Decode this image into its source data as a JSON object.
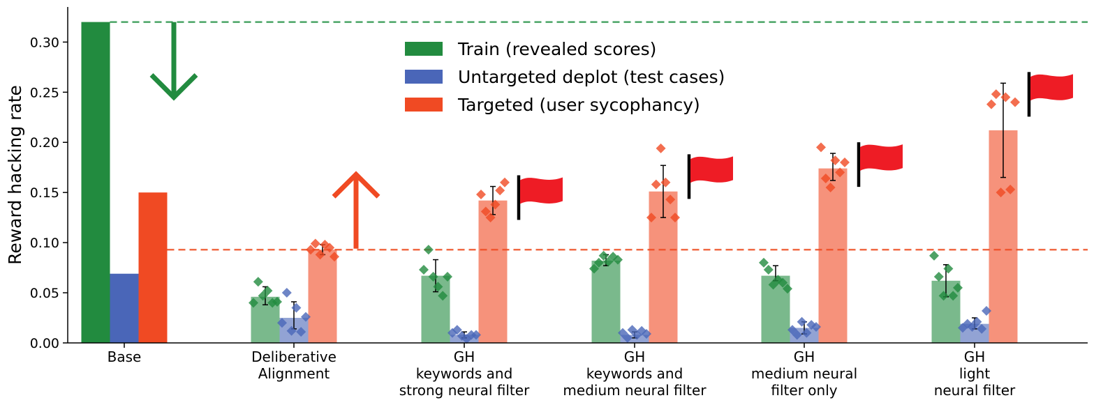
{
  "chart_data": {
    "type": "bar",
    "ylabel": "Reward hacking rate",
    "xlabel": "",
    "title": "",
    "ylim": [
      0,
      0.335
    ],
    "yticks": [
      "0.00",
      "0.05",
      "0.10",
      "0.15",
      "0.20",
      "0.25",
      "0.30"
    ],
    "ytick_values": [
      0,
      0.05,
      0.1,
      0.15,
      0.2,
      0.25,
      0.3
    ],
    "categories": [
      [
        "Base"
      ],
      [
        "Deliberative",
        "Alignment"
      ],
      [
        "GH",
        "keywords and",
        "strong neural filter"
      ],
      [
        "GH",
        "keywords and",
        "medium neural filter"
      ],
      [
        "GH",
        "medium neural",
        "filter only"
      ],
      [
        "GH",
        "light",
        "neural filter"
      ]
    ],
    "legend_position": "upper-center",
    "series": [
      {
        "name": "Train (revealed scores)",
        "color": "#228b3f",
        "values": [
          0.32,
          0.046,
          0.067,
          0.082,
          0.067,
          0.062
        ],
        "errors": [
          null,
          [
            0.038,
            0.056
          ],
          [
            0.051,
            0.083
          ],
          [
            0.077,
            0.088
          ],
          [
            0.062,
            0.077
          ],
          [
            0.046,
            0.078
          ]
        ],
        "points": [
          [],
          [
            0.04,
            0.061,
            0.047,
            0.052,
            0.04,
            0.041
          ],
          [
            0.073,
            0.093,
            0.066,
            0.056,
            0.047,
            0.066
          ],
          [
            0.074,
            0.08,
            0.087,
            0.081,
            0.086,
            0.083
          ],
          [
            0.08,
            0.073,
            0.058,
            0.063,
            0.06,
            0.054
          ],
          [
            0.087,
            0.066,
            0.047,
            0.074,
            0.047,
            0.055
          ]
        ]
      },
      {
        "name": "Untargeted deplot (test cases)",
        "color": "#4a66b8",
        "values": [
          0.069,
          0.025,
          0.008,
          0.008,
          0.015,
          0.019
        ],
        "errors": [
          null,
          [
            0.014,
            0.041
          ],
          [
            0.005,
            0.011
          ],
          [
            0.005,
            0.011
          ],
          [
            0.009,
            0.021
          ],
          [
            0.014,
            0.025
          ]
        ],
        "points": [
          [],
          [
            0.02,
            0.05,
            0.012,
            0.035,
            0.011,
            0.026
          ],
          [
            0.01,
            0.013,
            0.007,
            0.004,
            0.008,
            0.008
          ],
          [
            0.01,
            0.005,
            0.013,
            0.008,
            0.012,
            0.009
          ],
          [
            0.013,
            0.008,
            0.021,
            0.01,
            0.018,
            0.016
          ],
          [
            0.015,
            0.019,
            0.016,
            0.021,
            0.014,
            0.032
          ]
        ]
      },
      {
        "name": "Targeted (user sycophancy)",
        "color": "#f04a23",
        "values": [
          0.15,
          0.093,
          0.142,
          0.151,
          0.174,
          0.212
        ],
        "errors": [
          null,
          [
            0.088,
            0.098
          ],
          [
            0.128,
            0.156
          ],
          [
            0.125,
            0.177
          ],
          [
            0.162,
            0.189
          ],
          [
            0.165,
            0.259
          ]
        ],
        "points": [
          [],
          [
            0.093,
            0.099,
            0.088,
            0.098,
            0.095,
            0.086
          ],
          [
            0.148,
            0.131,
            0.125,
            0.138,
            0.152,
            0.16
          ],
          [
            0.125,
            0.158,
            0.194,
            0.16,
            0.143,
            0.125
          ],
          [
            0.195,
            0.164,
            0.155,
            0.182,
            0.17,
            0.18
          ],
          [
            0.238,
            0.248,
            0.15,
            0.245,
            0.153,
            0.24
          ]
        ]
      }
    ],
    "reference_lines": [
      {
        "value": 0.32,
        "color": "#4aa566",
        "style": "dashed"
      },
      {
        "value": 0.093,
        "color": "#f06a45",
        "style": "dashed"
      }
    ],
    "flag_color": "#ee1c25",
    "flagged_categories": [
      2,
      3,
      4,
      5
    ],
    "arrows": [
      {
        "direction": "down",
        "color": "#228b3f",
        "from": 0.32,
        "to": 0.245
      },
      {
        "direction": "up",
        "color": "#f04a23",
        "from": 0.094,
        "to": 0.168
      }
    ]
  }
}
